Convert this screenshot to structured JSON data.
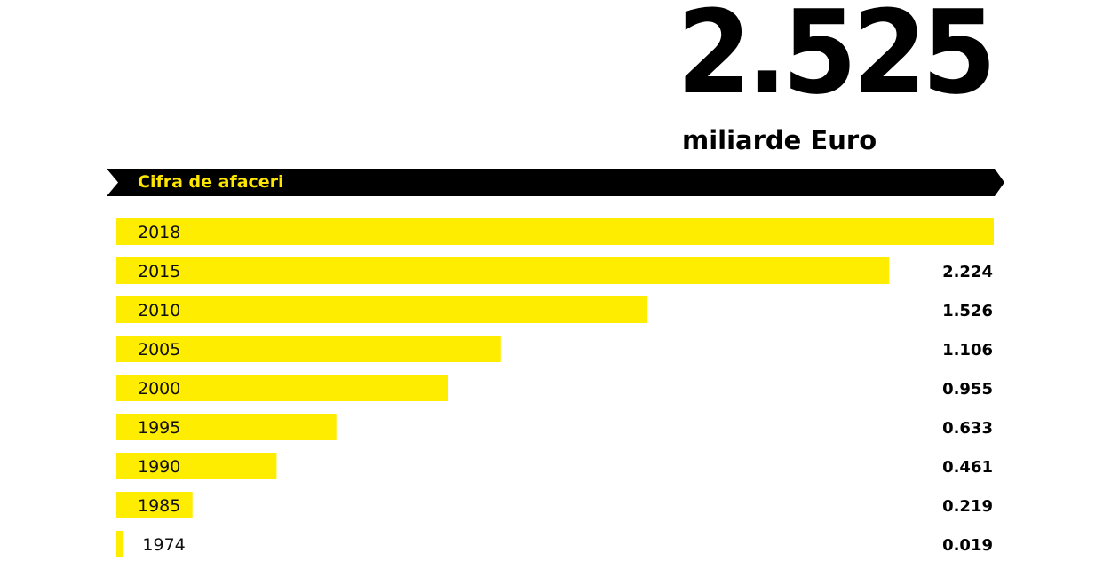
{
  "headline": {
    "value": "2.525",
    "unit": "miliarde Euro"
  },
  "banner": {
    "label": "Cifra de afaceri"
  },
  "colors": {
    "bar": "#ffed00",
    "banner_background": "#000000",
    "banner_text": "#ffe600",
    "text": "#000000"
  },
  "chart_data": {
    "type": "bar",
    "orientation": "horizontal",
    "title": "Cifra de afaceri",
    "unit": "miliarde Euro",
    "categories": [
      "2018",
      "2015",
      "2010",
      "2005",
      "2000",
      "1995",
      "1990",
      "1985",
      "1974"
    ],
    "values": [
      2.525,
      2.224,
      1.526,
      1.106,
      0.955,
      0.633,
      0.461,
      0.219,
      0.019
    ],
    "value_labels": [
      "",
      "2.224",
      "1.526",
      "1.106",
      "0.955",
      "0.633",
      "0.461",
      "0.219",
      "0.019"
    ],
    "xlim": [
      0,
      2.525
    ],
    "grid": false,
    "legend": false
  }
}
